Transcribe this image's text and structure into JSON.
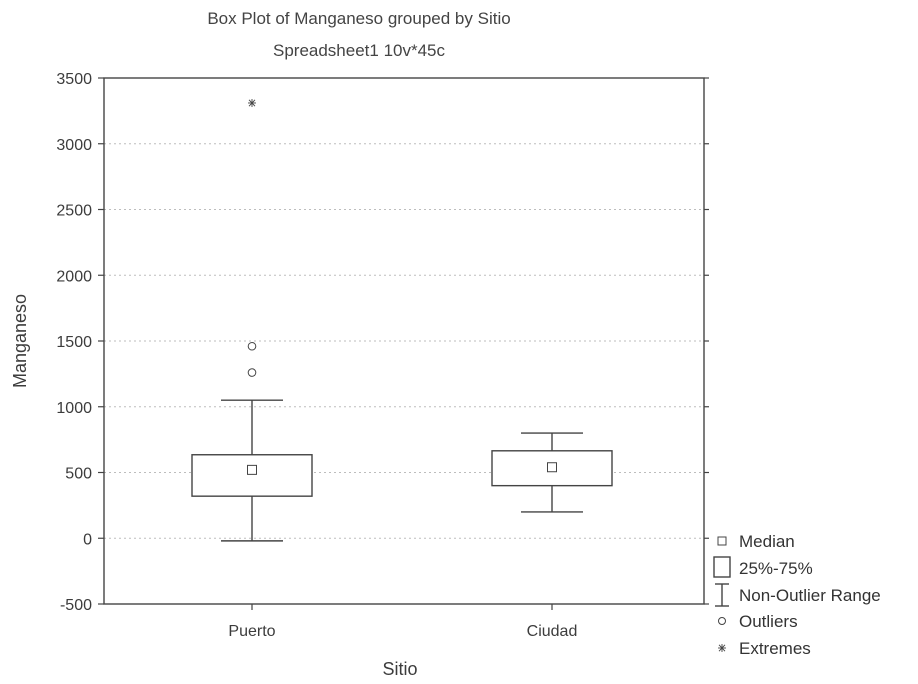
{
  "chart_data": {
    "type": "boxplot",
    "title": "Box Plot of Manganeso grouped by  Sitio",
    "subtitle": "Spreadsheet1 10v*45c",
    "xlabel": "Sitio",
    "ylabel": "Manganeso",
    "ylim": [
      -500,
      3500
    ],
    "yticks": [
      "3500",
      "3000",
      "2500",
      "2000",
      "1500",
      "1000",
      "500",
      "0",
      "-500"
    ],
    "ytick_values": [
      3500,
      3000,
      2500,
      2000,
      1500,
      1000,
      500,
      0,
      -500
    ],
    "grid": true,
    "legend_position": "bottom-right",
    "categories": [
      "Puerto",
      "Ciudad"
    ],
    "boxes": [
      {
        "category": "Puerto",
        "median": 520,
        "q1": 320,
        "q3": 635,
        "whisker_low": -20,
        "whisker_high": 1050,
        "outliers": [
          1260,
          1460
        ],
        "extremes": [
          3310
        ]
      },
      {
        "category": "Ciudad",
        "median": 540,
        "q1": 400,
        "q3": 665,
        "whisker_low": 200,
        "whisker_high": 800,
        "outliers": [],
        "extremes": []
      }
    ],
    "legend": [
      {
        "symbol": "median",
        "label": "Median"
      },
      {
        "symbol": "box",
        "label": "25%-75%"
      },
      {
        "symbol": "range",
        "label": "Non-Outlier Range"
      },
      {
        "symbol": "outlier",
        "label": "Outliers"
      },
      {
        "symbol": "extreme",
        "label": "Extremes"
      }
    ]
  },
  "colors": {
    "line": "#444444",
    "grid": "#bdbdbd",
    "text": "#3c3c3c"
  }
}
